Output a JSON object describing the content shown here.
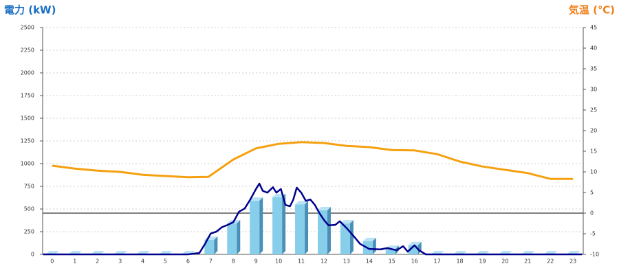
{
  "chart_data": {
    "type": "bar",
    "title_left": "電力 (kW)",
    "title_right": "気温 (℃)",
    "title_left_color": "#1a6fc4",
    "title_right_color": "#f07f1a",
    "categories": [
      "0",
      "1",
      "2",
      "3",
      "4",
      "5",
      "6",
      "7",
      "8",
      "9",
      "10",
      "11",
      "12",
      "13",
      "14",
      "15",
      "16",
      "17",
      "18",
      "19",
      "20",
      "21",
      "22",
      "23"
    ],
    "xlim": [
      -0.42,
      23.45
    ],
    "ylim": [
      0,
      2500
    ],
    "yticks": [
      0,
      250,
      500,
      750,
      1000,
      1250,
      1500,
      1750,
      2000,
      2250,
      2500
    ],
    "y2lim": [
      -10,
      45
    ],
    "y2ticks": [
      -10,
      -5,
      0,
      5,
      10,
      15,
      20,
      25,
      30,
      35,
      40,
      45
    ],
    "grid": true,
    "reference_line": {
      "axis": "y2",
      "value": 0,
      "color": "#000000"
    },
    "series": [
      {
        "type": "bar",
        "color": "#87ceeb",
        "side_color": "#4a8fb5",
        "top_color": "#b9e3f5",
        "values": [
          0,
          0,
          0,
          0,
          0,
          0,
          0,
          160,
          340,
          590,
          630,
          550,
          485,
          340,
          145,
          60,
          100,
          0,
          0,
          0,
          0,
          0,
          0,
          0
        ]
      },
      {
        "type": "line",
        "color": "#00008b",
        "x": [
          -0.4,
          6.0,
          6.5,
          6.75,
          7.0,
          7.25,
          7.5,
          7.75,
          8.0,
          8.25,
          8.5,
          8.75,
          9.0,
          9.15,
          9.3,
          9.5,
          9.75,
          9.9,
          10.1,
          10.3,
          10.5,
          10.65,
          10.8,
          11.0,
          11.2,
          11.4,
          11.6,
          11.8,
          12.0,
          12.2,
          12.5,
          12.7,
          13.0,
          13.3,
          13.6,
          14.0,
          14.5,
          14.8,
          15.2,
          15.5,
          15.7,
          16.0,
          16.2,
          16.5,
          23.4
        ],
        "values": [
          0,
          0,
          15,
          115,
          230,
          250,
          300,
          325,
          355,
          470,
          505,
          605,
          720,
          780,
          700,
          680,
          740,
          680,
          720,
          545,
          530,
          605,
          735,
          680,
          590,
          605,
          545,
          455,
          380,
          320,
          325,
          365,
          290,
          205,
          115,
          60,
          55,
          70,
          45,
          90,
          30,
          100,
          45,
          0,
          0
        ]
      },
      {
        "type": "line",
        "axis": "y2",
        "color": "#f5a00f",
        "x": [
          0,
          1,
          2,
          3,
          4,
          5,
          6,
          6.9,
          8,
          9,
          10,
          11,
          12,
          13,
          14,
          15,
          16,
          17,
          18,
          19,
          20,
          21,
          22,
          23
        ],
        "values": [
          11.5,
          10.8,
          10.3,
          10,
          9.3,
          9,
          8.7,
          8.8,
          13,
          15.7,
          16.8,
          17.2,
          17,
          16.3,
          16,
          15.3,
          15.2,
          14.3,
          12.5,
          11.3,
          10.5,
          9.7,
          8.3,
          8.3
        ]
      }
    ]
  }
}
